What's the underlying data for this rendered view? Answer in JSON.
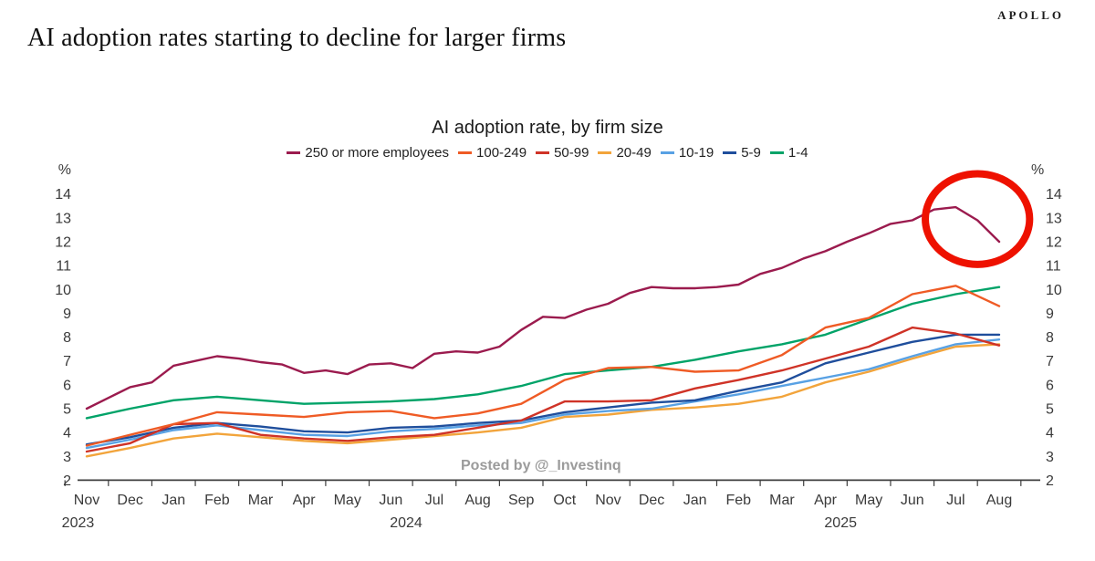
{
  "header": {
    "title": "AI adoption rates starting to decline for larger firms",
    "brand": "APOLLO"
  },
  "watermark": "Posted by @_Investinq",
  "chart_data": {
    "type": "line",
    "title": "AI adoption rate, by firm size",
    "unit": "%",
    "ylim": [
      2,
      14
    ],
    "y_ticks": [
      14,
      13,
      12,
      11,
      10,
      9,
      8,
      7,
      6,
      5,
      4,
      3,
      2
    ],
    "grid": false,
    "legend_position": "top",
    "x_months": [
      "Nov",
      "Dec",
      "Jan",
      "Feb",
      "Mar",
      "Apr",
      "May",
      "Jun",
      "Jul",
      "Aug",
      "Sep",
      "Oct",
      "Nov",
      "Dec",
      "Jan",
      "Feb",
      "Mar",
      "Apr",
      "May",
      "Jun",
      "Jul",
      "Aug"
    ],
    "x_years": [
      {
        "label": "2023",
        "anchor_month_index": -0.2
      },
      {
        "label": "2024",
        "anchor_month_index": 7.35
      },
      {
        "label": "2025",
        "anchor_month_index": 17.35
      }
    ],
    "series": [
      {
        "name": "250 or more employees",
        "color": "#9B1B4E",
        "cadence": "semi-monthly",
        "values": [
          5.0,
          5.45,
          5.9,
          6.1,
          6.8,
          7.0,
          7.2,
          7.1,
          6.95,
          6.85,
          6.5,
          6.6,
          6.45,
          6.85,
          6.9,
          6.7,
          7.3,
          7.4,
          7.35,
          7.6,
          8.3,
          8.85,
          8.8,
          9.15,
          9.4,
          9.85,
          10.1,
          10.05,
          10.05,
          10.1,
          10.2,
          10.65,
          10.9,
          11.3,
          11.6,
          12.0,
          12.35,
          12.75,
          12.9,
          13.35,
          13.45,
          12.9,
          12.0
        ]
      },
      {
        "name": "100-249",
        "color": "#EF5B25",
        "cadence": "monthly",
        "values": [
          3.45,
          3.9,
          4.35,
          4.85,
          4.75,
          4.65,
          4.85,
          4.9,
          4.6,
          4.8,
          5.2,
          6.2,
          6.7,
          6.75,
          6.55,
          6.6,
          7.25,
          8.4,
          8.8,
          9.8,
          10.15,
          9.3
        ]
      },
      {
        "name": "50-99",
        "color": "#CF3327",
        "cadence": "monthly",
        "values": [
          3.2,
          3.55,
          4.35,
          4.4,
          3.9,
          3.75,
          3.65,
          3.8,
          3.9,
          4.2,
          4.5,
          5.3,
          5.3,
          5.35,
          5.85,
          6.2,
          6.6,
          7.1,
          7.6,
          8.4,
          8.15,
          7.65
        ]
      },
      {
        "name": "20-49",
        "color": "#F2A43B",
        "cadence": "monthly",
        "values": [
          3.0,
          3.35,
          3.75,
          3.95,
          3.8,
          3.65,
          3.55,
          3.7,
          3.85,
          4.0,
          4.2,
          4.65,
          4.75,
          4.95,
          5.05,
          5.2,
          5.5,
          6.1,
          6.55,
          7.1,
          7.6,
          7.7
        ]
      },
      {
        "name": "10-19",
        "color": "#58A1E4",
        "cadence": "monthly",
        "values": [
          3.35,
          3.7,
          4.1,
          4.3,
          4.1,
          3.9,
          3.85,
          4.05,
          4.15,
          4.3,
          4.4,
          4.75,
          4.9,
          5.0,
          5.3,
          5.6,
          5.95,
          6.3,
          6.65,
          7.2,
          7.7,
          7.9
        ]
      },
      {
        "name": "5-9",
        "color": "#1F4E9C",
        "cadence": "monthly",
        "values": [
          3.5,
          3.8,
          4.2,
          4.4,
          4.25,
          4.05,
          4.0,
          4.2,
          4.25,
          4.4,
          4.5,
          4.85,
          5.05,
          5.25,
          5.35,
          5.75,
          6.1,
          6.9,
          7.35,
          7.8,
          8.1,
          8.1
        ]
      },
      {
        "name": "1-4",
        "color": "#00A368",
        "cadence": "monthly",
        "values": [
          4.6,
          5.0,
          5.35,
          5.5,
          5.35,
          5.2,
          5.25,
          5.3,
          5.4,
          5.6,
          5.95,
          6.45,
          6.6,
          6.75,
          7.05,
          7.4,
          7.7,
          8.1,
          8.75,
          9.4,
          9.8,
          10.1
        ]
      }
    ],
    "annotation": {
      "shape": "ellipse",
      "note": "red circle highlighting decline for largest firms",
      "center_month_index": 20.5,
      "center_value": 12.95,
      "radius_months": 1.2,
      "radius_values": 1.9,
      "color": "#EE1100"
    }
  }
}
